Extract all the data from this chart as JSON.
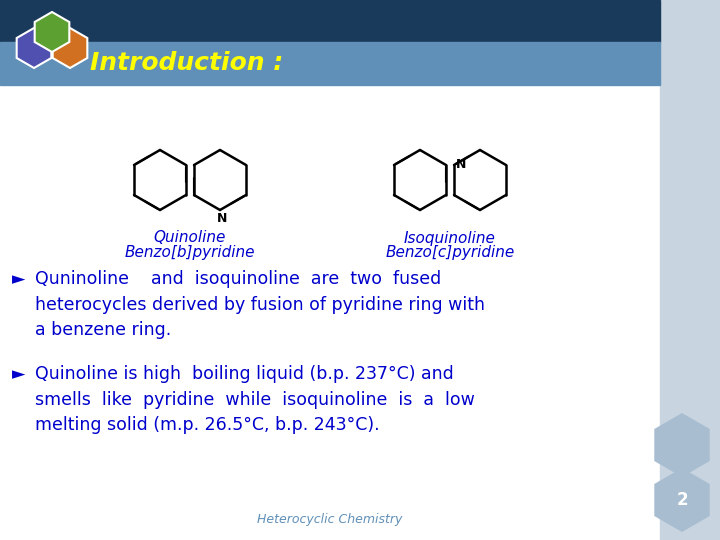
{
  "title": "Introduction :",
  "title_color": "#FFFF00",
  "header_bg_color": "#6090B8",
  "header_dark_color": "#1A3A5C",
  "slide_bg_color": "#FFFFFF",
  "bullet_color": "#0000CC",
  "label1_line1": "Quinoline",
  "label1_line2": "Benzo[b]pyridine",
  "label2_line1": "Isoquinoline",
  "label2_line2": "Benzo[c]pyridine",
  "bullet1_arrow": "►",
  "bullet1": "Quninoline    and  isoquinoline  are  two  fused\nheterocycles derived by fusion of pyridine ring with\na benzene ring.",
  "bullet2": "Quinoline is high  boiling liquid (b.p. 237°C) and\nsmells  like  pyridine  while  isoquinoline  is  a  low\nmelting solid (m.p. 26.5°C, b.p. 243°C).",
  "footer_text": "Heterocyclic Chemistry",
  "footer_color": "#6090B8",
  "page_number": "2",
  "right_panel_color": "#C8D4E0",
  "hex_green": "#5BA030",
  "hex_purple": "#5050B0",
  "hex_orange": "#D07020",
  "hex_outline": "#FFFFFF",
  "dec_hex_color": "#A8BDD0"
}
